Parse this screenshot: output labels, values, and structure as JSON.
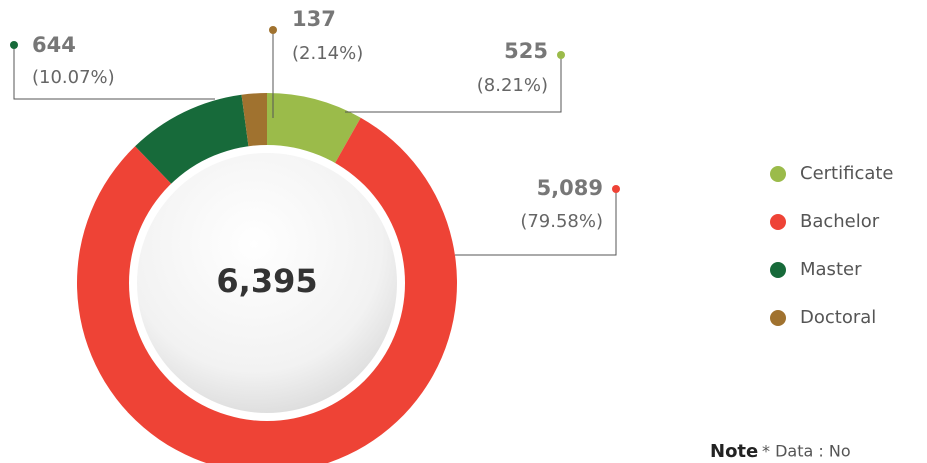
{
  "chart_data": {
    "type": "donut",
    "categories": [
      "Certificate",
      "Bachelor",
      "Master",
      "Doctoral"
    ],
    "values": [
      525,
      5089,
      644,
      137
    ],
    "value_labels": [
      "525",
      "5,089",
      "644",
      "137"
    ],
    "percents": [
      8.21,
      79.58,
      10.07,
      2.14
    ],
    "percent_labels": [
      "(8.21%)",
      "(79.58%)",
      "(10.07%)",
      "(2.14%)"
    ],
    "colors": [
      "#9bbb4a",
      "#ee4336",
      "#176a3a",
      "#a0722f"
    ],
    "total": 6395,
    "total_label": "6,395",
    "note_title": "Note",
    "note_text": "* Data : No"
  }
}
